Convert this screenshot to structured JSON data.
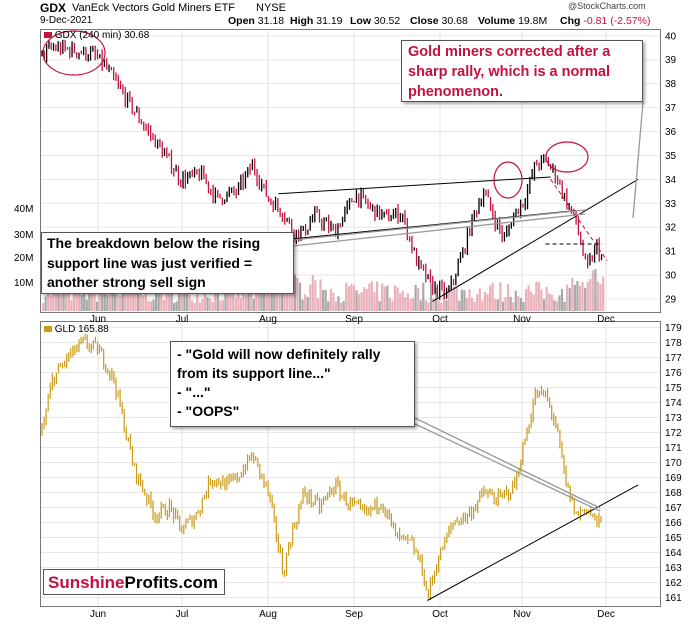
{
  "header": {
    "symbol": "GDX",
    "name": "VanEck Vectors Gold Miners ETF",
    "exchange": "NYSE",
    "date": "9-Dec-2021",
    "open_label": "Open",
    "open": "31.18",
    "high_label": "High",
    "high": "31.19",
    "low_label": "Low",
    "low": "30.52",
    "close_label": "Close",
    "close": "30.68",
    "volume_label": "Volume",
    "volume": "19.8M",
    "chg_label": "Chg",
    "chg": "-0.81 (-2.57%)",
    "watermark": "@StockCharts.com"
  },
  "colors": {
    "up": "#000000",
    "down": "#c4123e",
    "gld": "#c99a1a",
    "volume": "#e8a3ae",
    "volume_dark": "#999999",
    "annotation": "#c4123e"
  },
  "annotations": {
    "top_callout": "Gold miners corrected after a sharp rally, which is a normal phenomenon.",
    "breakdown_callout": "The breakdown below the rising support line was just verified = another strong sell sign",
    "gold_callout": [
      "- \"Gold will now definitely rally from its support line...\"",
      "- \"...\"",
      "- \"OOPS\""
    ],
    "logo_part1": "Sunshine",
    "logo_part2": "Profits.com"
  },
  "chart_data": [
    {
      "type": "line",
      "title": "GDX (240 min) 30.68",
      "x_ticks": [
        "Jun",
        "Jul",
        "Aug",
        "Sep",
        "Oct",
        "Nov",
        "Dec"
      ],
      "y_ticks": [
        29,
        30,
        31,
        32,
        33,
        34,
        35,
        36,
        37,
        38,
        39,
        40
      ],
      "ylim": [
        28.5,
        40.2
      ],
      "volume_ticks": [
        "10M",
        "20M",
        "30M",
        "40M"
      ],
      "price_keypoints": [
        {
          "t": 0,
          "v": 39.2
        },
        {
          "t": 2,
          "v": 39.5
        },
        {
          "t": 6,
          "v": 39.4
        },
        {
          "t": 10,
          "v": 39.2
        },
        {
          "t": 12,
          "v": 38.8
        },
        {
          "t": 16,
          "v": 37.5
        },
        {
          "t": 20,
          "v": 36.2
        },
        {
          "t": 24,
          "v": 35.0
        },
        {
          "t": 27,
          "v": 34.0
        },
        {
          "t": 31,
          "v": 34.2
        },
        {
          "t": 34,
          "v": 33.2
        },
        {
          "t": 38,
          "v": 33.5
        },
        {
          "t": 41,
          "v": 34.6
        },
        {
          "t": 44,
          "v": 33.2
        },
        {
          "t": 47,
          "v": 32.6
        },
        {
          "t": 49,
          "v": 31.8
        },
        {
          "t": 51,
          "v": 31.8
        },
        {
          "t": 53,
          "v": 32.5
        },
        {
          "t": 57,
          "v": 31.8
        },
        {
          "t": 61,
          "v": 33.4
        },
        {
          "t": 64,
          "v": 32.8
        },
        {
          "t": 67,
          "v": 32.4
        },
        {
          "t": 70,
          "v": 32.6
        },
        {
          "t": 73,
          "v": 30.5
        },
        {
          "t": 76,
          "v": 29.5
        },
        {
          "t": 79,
          "v": 29.2
        },
        {
          "t": 82,
          "v": 31.0
        },
        {
          "t": 84,
          "v": 32.5
        },
        {
          "t": 86,
          "v": 33.5
        },
        {
          "t": 88,
          "v": 32.4
        },
        {
          "t": 90,
          "v": 31.5
        },
        {
          "t": 92,
          "v": 32.6
        },
        {
          "t": 94,
          "v": 33.2
        },
        {
          "t": 96,
          "v": 34.6
        },
        {
          "t": 98,
          "v": 34.8
        },
        {
          "t": 100,
          "v": 34.2
        },
        {
          "t": 102,
          "v": 33.1
        },
        {
          "t": 104,
          "v": 32.2
        },
        {
          "t": 106,
          "v": 30.2
        },
        {
          "t": 108,
          "v": 31.2
        },
        {
          "t": 109,
          "v": 30.68
        }
      ],
      "trend_lines": [
        {
          "from": {
            "t": 46,
            "v": 33.4
          },
          "to": {
            "t": 99,
            "v": 34.1
          }
        },
        {
          "from": {
            "t": 48,
            "v": 31.5
          },
          "to": {
            "t": 104,
            "v": 32.7
          }
        },
        {
          "from": {
            "t": 76,
            "v": 28.9
          },
          "to": {
            "t": 116,
            "v": 34.0
          }
        },
        {
          "from": {
            "t": 99,
            "v": 34.0
          },
          "to": {
            "t": 110,
            "v": 30.6
          },
          "dashed": true,
          "color": "#c4123e"
        },
        {
          "from": {
            "t": 98,
            "v": 31.3
          },
          "to": {
            "t": 109,
            "v": 31.3
          },
          "dashed": true
        }
      ]
    },
    {
      "type": "line",
      "title": "GLD 165.88",
      "x_ticks": [
        "Jun",
        "Jul",
        "Aug",
        "Sep",
        "Oct",
        "Nov",
        "Dec"
      ],
      "y_ticks": [
        161,
        162,
        163,
        164,
        165,
        166,
        167,
        168,
        169,
        170,
        171,
        172,
        173,
        174,
        175,
        176,
        177,
        178,
        179
      ],
      "ylim": [
        160.5,
        179.3
      ],
      "price_keypoints": [
        {
          "t": 0,
          "v": 172.0
        },
        {
          "t": 2,
          "v": 175.5
        },
        {
          "t": 5,
          "v": 177.0
        },
        {
          "t": 8,
          "v": 178.0
        },
        {
          "t": 11,
          "v": 177.5
        },
        {
          "t": 14,
          "v": 175.5
        },
        {
          "t": 16,
          "v": 172.5
        },
        {
          "t": 18,
          "v": 169.5
        },
        {
          "t": 22,
          "v": 166.5
        },
        {
          "t": 25,
          "v": 167.0
        },
        {
          "t": 27,
          "v": 165.5
        },
        {
          "t": 30,
          "v": 166.5
        },
        {
          "t": 33,
          "v": 169.0
        },
        {
          "t": 36,
          "v": 168.5
        },
        {
          "t": 38,
          "v": 169.0
        },
        {
          "t": 41,
          "v": 170.5
        },
        {
          "t": 44,
          "v": 168.0
        },
        {
          "t": 46,
          "v": 164.5
        },
        {
          "t": 47,
          "v": 162.5
        },
        {
          "t": 48,
          "v": 164.5
        },
        {
          "t": 51,
          "v": 168.0
        },
        {
          "t": 54,
          "v": 167.0
        },
        {
          "t": 57,
          "v": 168.5
        },
        {
          "t": 59,
          "v": 167.5
        },
        {
          "t": 63,
          "v": 166.5
        },
        {
          "t": 66,
          "v": 167.5
        },
        {
          "t": 69,
          "v": 165.0
        },
        {
          "t": 72,
          "v": 164.5
        },
        {
          "t": 74,
          "v": 163.0
        },
        {
          "t": 75,
          "v": 161.0
        },
        {
          "t": 77,
          "v": 163.5
        },
        {
          "t": 80,
          "v": 166.0
        },
        {
          "t": 83,
          "v": 166.5
        },
        {
          "t": 86,
          "v": 168.0
        },
        {
          "t": 89,
          "v": 167.5
        },
        {
          "t": 92,
          "v": 168.5
        },
        {
          "t": 94,
          "v": 171.5
        },
        {
          "t": 96,
          "v": 174.5
        },
        {
          "t": 98,
          "v": 174.5
        },
        {
          "t": 100,
          "v": 172.5
        },
        {
          "t": 102,
          "v": 168.5
        },
        {
          "t": 104,
          "v": 166.5
        },
        {
          "t": 106,
          "v": 167.0
        },
        {
          "t": 108,
          "v": 166.0
        },
        {
          "t": 109,
          "v": 165.88
        }
      ],
      "trend_lines": [
        {
          "from": {
            "t": 75,
            "v": 160.8
          },
          "to": {
            "t": 116,
            "v": 168.5
          }
        }
      ]
    }
  ]
}
